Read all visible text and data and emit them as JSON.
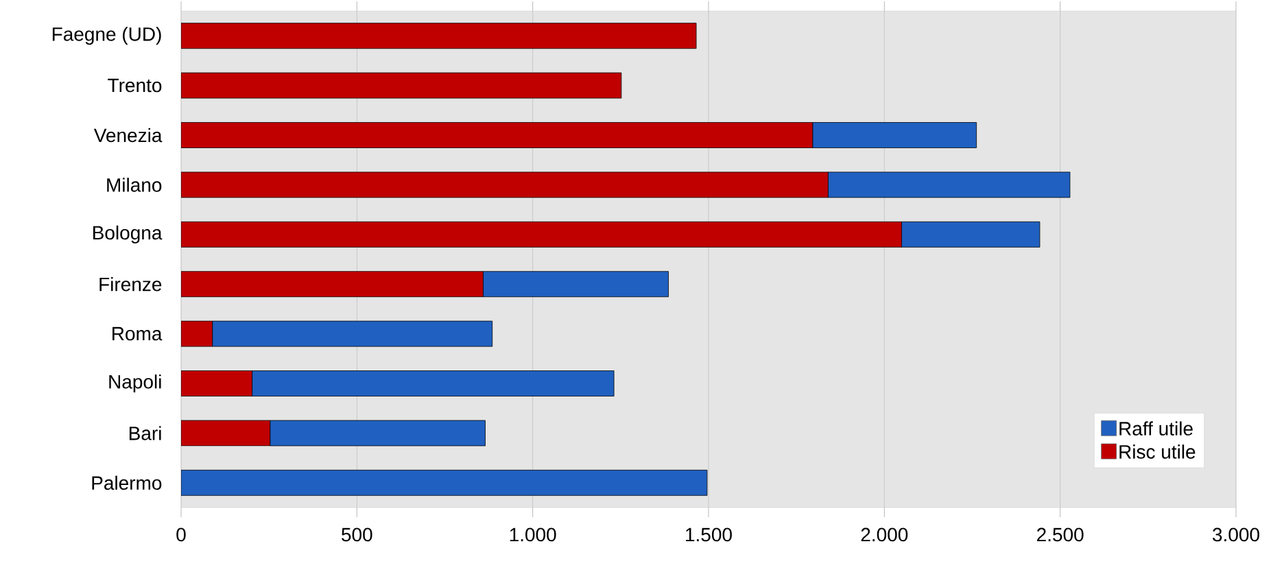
{
  "chart_data": {
    "type": "bar",
    "orientation": "horizontal",
    "stacked": true,
    "categories": [
      "Faegne (UD)",
      "Trento",
      "Venezia",
      "Milano",
      "Bologna",
      "Firenze",
      "Roma",
      "Napoli",
      "Bari",
      "Palermo"
    ],
    "series": [
      {
        "name": "Risc utile",
        "color": "#c00000",
        "values": [
          1465,
          1252,
          1796,
          1840,
          2049,
          859,
          89,
          202,
          253,
          0
        ]
      },
      {
        "name": "Raff utile",
        "color": "#2060c0",
        "values": [
          0,
          0,
          466,
          688,
          393,
          527,
          796,
          1029,
          612,
          1496
        ]
      }
    ],
    "xlim": [
      0,
      3000
    ],
    "xticks": [
      0,
      500,
      {
        "value": 1000,
        "label": "1.000"
      },
      {
        "value": 1500,
        "label": "1.500"
      },
      {
        "value": 2000,
        "label": "2.000"
      },
      {
        "value": 2500,
        "label": "2.500"
      },
      {
        "value": 3000,
        "label": "3.000"
      }
    ],
    "grid": "x",
    "legend": "bottom right"
  }
}
